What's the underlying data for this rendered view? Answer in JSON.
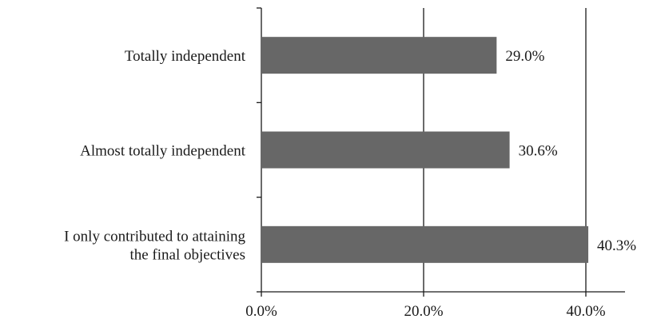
{
  "chart_data": {
    "type": "bar",
    "orientation": "horizontal",
    "categories": [
      [
        "Totally independent"
      ],
      [
        "Almost totally independent"
      ],
      [
        "I only contributed to attaining",
        "the final objectives"
      ]
    ],
    "values": [
      29.0,
      30.6,
      40.3
    ],
    "data_labels": [
      "29.0%",
      "30.6%",
      "40.3%"
    ],
    "xlim": [
      0,
      45
    ],
    "xticks": [
      0,
      20,
      40
    ],
    "xtick_labels": [
      "0.0%",
      "20.0%",
      "40.0%"
    ],
    "title": "",
    "xlabel": "",
    "ylabel": "",
    "grid": "vertical lines at 20% and 40%",
    "legend": "none",
    "bar_color": "#676767",
    "axis_color": "#1a1a1a"
  }
}
